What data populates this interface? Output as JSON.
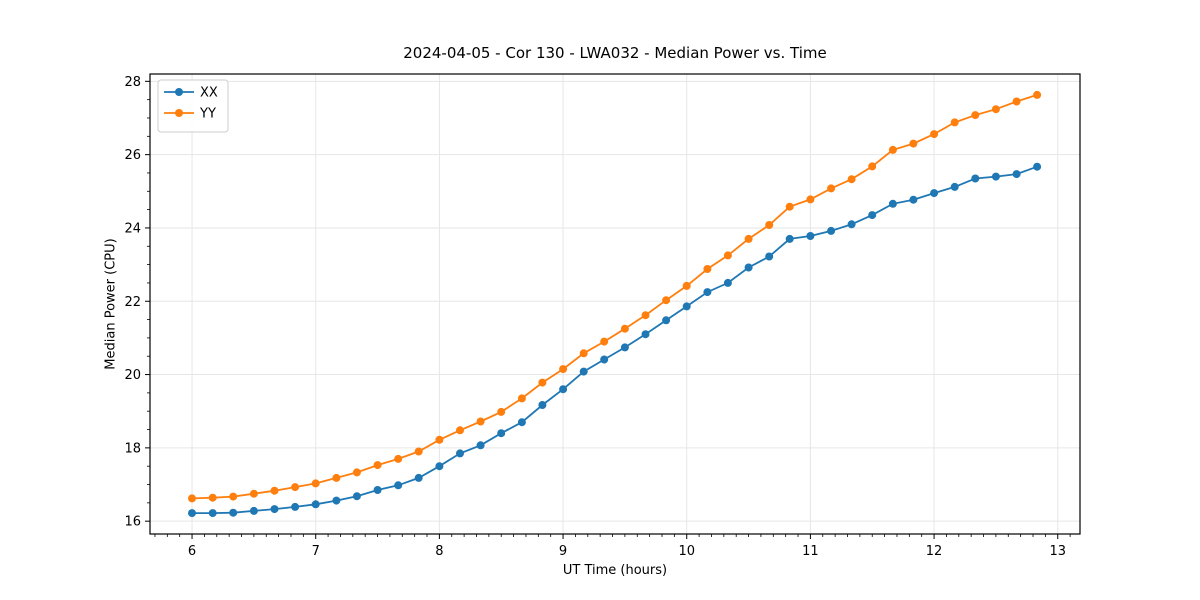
{
  "chart_data": {
    "type": "line",
    "title": "2024-04-05 - Cor 130 - LWA032 - Median Power vs. Time",
    "xlabel": "UT Time (hours)",
    "ylabel": "Median Power (CPU)",
    "xlim": [
      5.66,
      13.18
    ],
    "ylim": [
      15.65,
      28.2
    ],
    "xticks": [
      6,
      7,
      8,
      9,
      10,
      11,
      12,
      13
    ],
    "yticks": [
      16,
      18,
      20,
      22,
      24,
      26,
      28
    ],
    "x_minor_step": 0.1,
    "y_minor_step": 0.5,
    "grid": true,
    "grid_color": "#e6e6e6",
    "frame_color": "#000000",
    "legend_position": "upper-left",
    "x": [
      6,
      6.167,
      6.333,
      6.5,
      6.667,
      6.833,
      7,
      7.167,
      7.333,
      7.5,
      7.667,
      7.833,
      8,
      8.167,
      8.333,
      8.5,
      8.667,
      8.833,
      9,
      9.167,
      9.333,
      9.5,
      9.667,
      9.833,
      10,
      10.167,
      10.333,
      10.5,
      10.667,
      10.833,
      11,
      11.167,
      11.333,
      11.5,
      11.667,
      11.833,
      12,
      12.167,
      12.333,
      12.5,
      12.667,
      12.833
    ],
    "series": [
      {
        "name": "XX",
        "color": "#1f77b4",
        "values": [
          16.22,
          16.22,
          16.23,
          16.28,
          16.33,
          16.39,
          16.46,
          16.56,
          16.68,
          16.85,
          16.98,
          17.18,
          17.5,
          17.85,
          18.07,
          18.4,
          18.7,
          19.17,
          19.6,
          20.08,
          20.41,
          20.74,
          21.1,
          21.48,
          21.86,
          22.25,
          22.5,
          22.92,
          23.22,
          23.7,
          23.78,
          23.92,
          24.1,
          24.35,
          24.66,
          24.77,
          24.95,
          25.12,
          25.35,
          25.4,
          25.47,
          25.67
        ]
      },
      {
        "name": "YY",
        "color": "#ff7f0e",
        "values": [
          16.62,
          16.64,
          16.67,
          16.75,
          16.83,
          16.93,
          17.03,
          17.18,
          17.33,
          17.53,
          17.7,
          17.9,
          18.22,
          18.48,
          18.72,
          18.98,
          19.35,
          19.78,
          20.15,
          20.58,
          20.9,
          21.25,
          21.62,
          22.03,
          22.42,
          22.88,
          23.25,
          23.7,
          24.08,
          24.58,
          24.78,
          25.08,
          25.33,
          25.68,
          26.13,
          26.3,
          26.56,
          26.88,
          27.08,
          27.24,
          27.45,
          27.63
        ]
      }
    ]
  }
}
